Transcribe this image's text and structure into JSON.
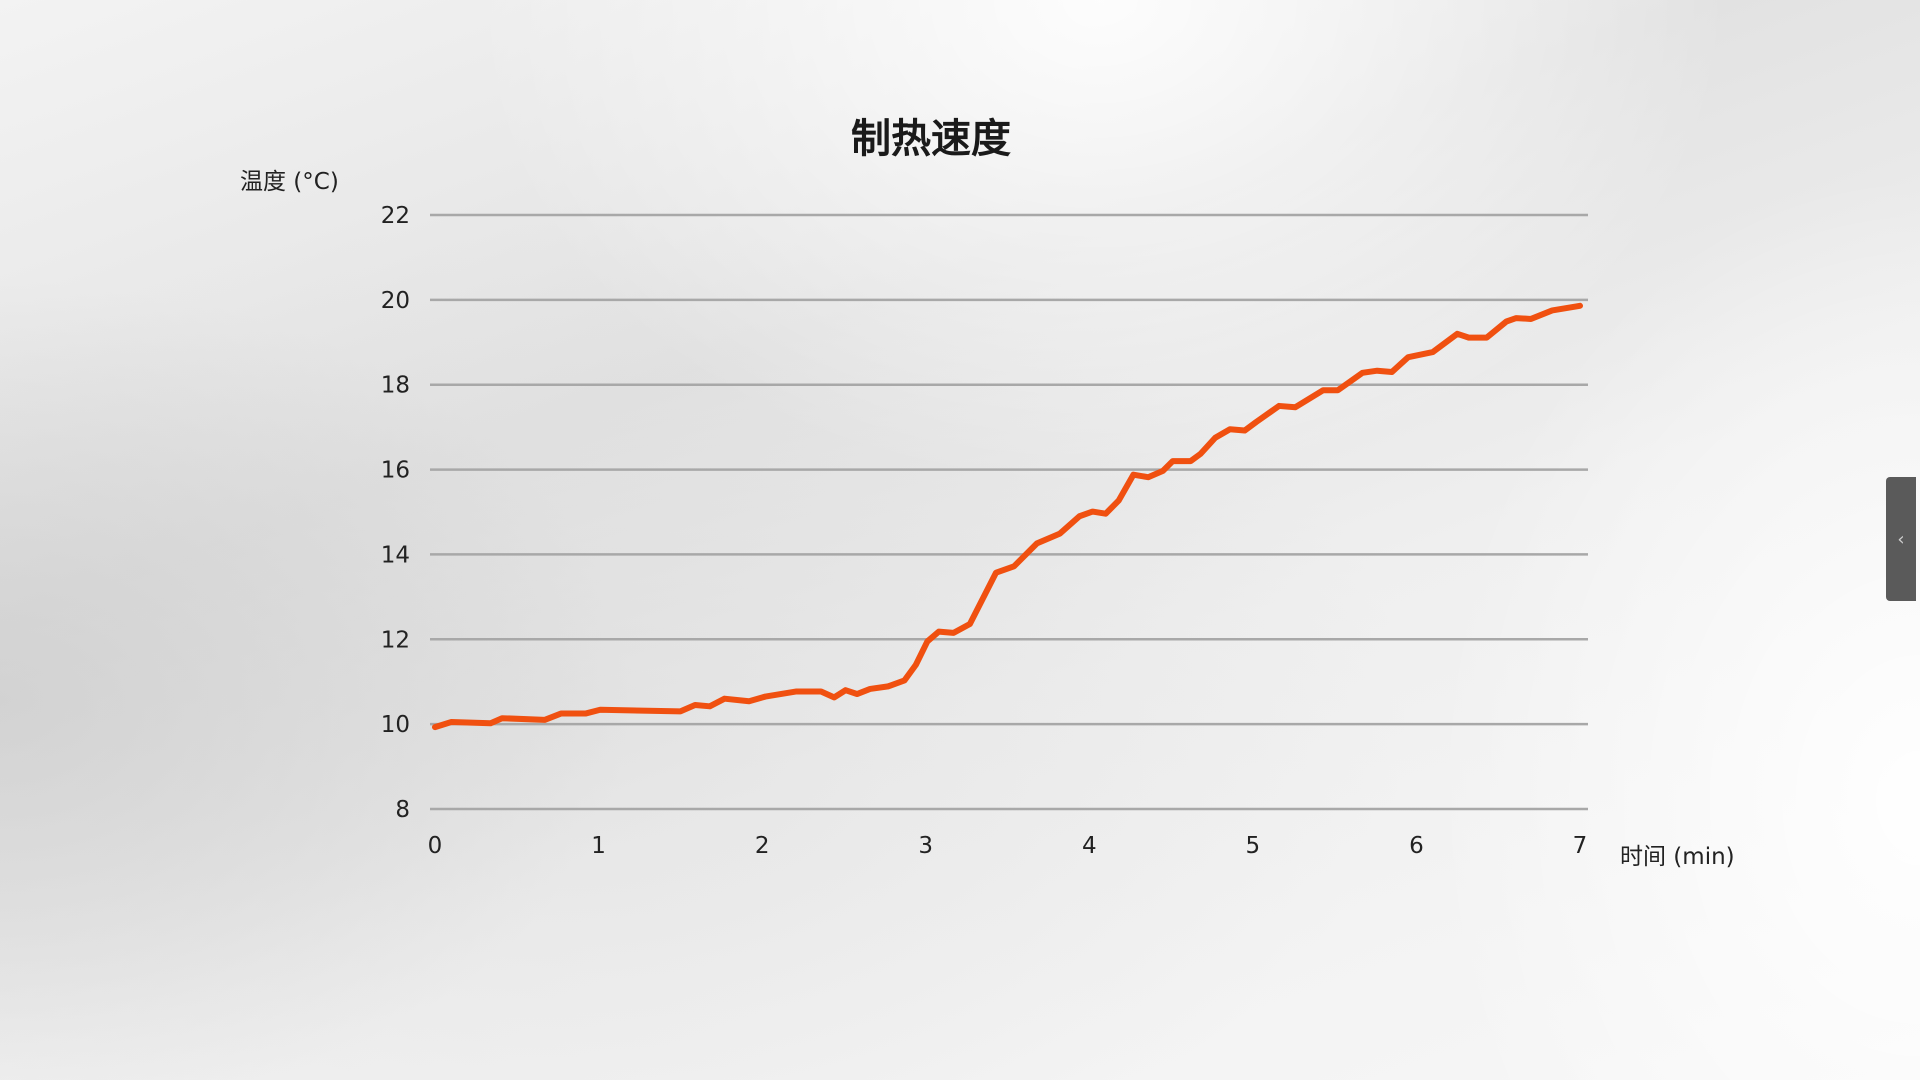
{
  "chart_data": {
    "type": "line",
    "title": "制热速度",
    "ylabel": "温度 (°C)",
    "xlabel": "时间 (min)",
    "xlim": [
      0,
      7
    ],
    "ylim": [
      8,
      22
    ],
    "xticks": [
      0,
      1,
      2,
      3,
      4,
      5,
      6,
      7
    ],
    "yticks": [
      8,
      10,
      12,
      14,
      16,
      18,
      20,
      22
    ],
    "grid": "horizontal",
    "line_color": "#f05010",
    "series": [
      {
        "x": [
          0,
          0.1,
          0.34,
          0.41,
          0.67,
          0.77,
          0.92,
          1.01,
          1.5,
          1.59,
          1.68,
          1.77,
          1.92,
          2.02,
          2.21,
          2.36,
          2.44,
          2.51,
          2.58,
          2.66,
          2.77,
          2.87,
          2.94,
          3.01,
          3.08,
          3.17,
          3.27,
          3.43,
          3.54,
          3.68,
          3.82,
          3.94,
          4.02,
          4.1,
          4.18,
          4.27,
          4.36,
          4.45,
          4.51,
          4.62,
          4.68,
          4.77,
          4.86,
          4.95,
          5.02,
          5.16,
          5.26,
          5.43,
          5.52,
          5.67,
          5.76,
          5.85,
          5.95,
          6.1,
          6.25,
          6.32,
          6.43,
          6.55,
          6.61,
          6.7,
          6.83,
          7.0
        ],
        "y": [
          9.93,
          10.05,
          10.02,
          10.14,
          10.1,
          10.25,
          10.25,
          10.34,
          10.3,
          10.45,
          10.42,
          10.6,
          10.54,
          10.65,
          10.77,
          10.77,
          10.63,
          10.8,
          10.71,
          10.83,
          10.89,
          11.03,
          11.4,
          11.95,
          12.18,
          12.15,
          12.36,
          13.57,
          13.72,
          14.26,
          14.49,
          14.9,
          15.01,
          14.96,
          15.27,
          15.88,
          15.82,
          15.97,
          16.2,
          16.2,
          16.37,
          16.75,
          16.95,
          16.92,
          17.12,
          17.5,
          17.47,
          17.87,
          17.87,
          18.28,
          18.33,
          18.3,
          18.65,
          18.77,
          19.2,
          19.11,
          19.11,
          19.49,
          19.57,
          19.55,
          19.75,
          19.86
        ]
      }
    ]
  },
  "side_tab": {
    "icon": "chevron-left-icon",
    "glyph": "‹"
  }
}
